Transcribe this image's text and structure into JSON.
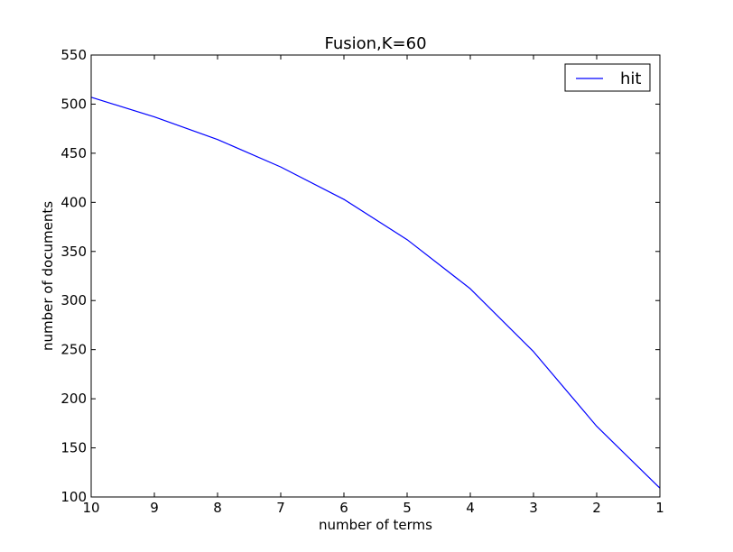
{
  "chart_data": {
    "type": "line",
    "title": "Fusion,K=60",
    "xlabel": "number of terms",
    "ylabel": "number of documents",
    "x": [
      10,
      9,
      8,
      7,
      6,
      5,
      4,
      3,
      2,
      1
    ],
    "x_ticks": [
      "10",
      "9",
      "8",
      "7",
      "6",
      "5",
      "4",
      "3",
      "2",
      "1"
    ],
    "y_ticks": [
      "100",
      "150",
      "200",
      "250",
      "300",
      "350",
      "400",
      "450",
      "500",
      "550"
    ],
    "xlim": [
      10,
      1
    ],
    "ylim": [
      100,
      550
    ],
    "x_reversed": true,
    "grid": false,
    "legend_position": "top-right",
    "series": [
      {
        "name": "hit",
        "color": "#0000ff",
        "values": [
          507,
          487,
          464,
          436,
          403,
          362,
          312,
          248,
          172,
          109
        ]
      }
    ]
  }
}
